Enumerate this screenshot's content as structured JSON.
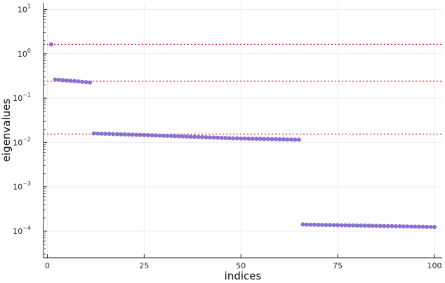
{
  "chart_data": {
    "type": "scatter",
    "xlabel": "indices",
    "ylabel": "eigenvalues",
    "y_scale": "log10",
    "xlim": [
      -1,
      102
    ],
    "ylim_log10": [
      -4.6,
      1.15
    ],
    "x_ticks": [
      {
        "value": 0,
        "label": "0"
      },
      {
        "value": 25,
        "label": "25"
      },
      {
        "value": 50,
        "label": "50"
      },
      {
        "value": 75,
        "label": "75"
      },
      {
        "value": 100,
        "label": "100"
      }
    ],
    "y_ticks": [
      {
        "exponent": 1,
        "base": "10",
        "exp": "1"
      },
      {
        "exponent": 0,
        "base": "10",
        "exp": "0"
      },
      {
        "exponent": -1,
        "base": "10",
        "exp": "−1"
      },
      {
        "exponent": -2,
        "base": "10",
        "exp": "−2"
      },
      {
        "exponent": -3,
        "base": "10",
        "exp": "−3"
      },
      {
        "exponent": -4,
        "base": "10",
        "exp": "−4"
      }
    ],
    "grid": true,
    "legend": "none",
    "marker_color": "#6b7fd7",
    "marker_edge_color": "#b45ac0",
    "reference_line_color": "#e0282e",
    "reference_lines": [
      1.63,
      0.24,
      0.0155
    ],
    "series": [
      {
        "x": [
          1
        ],
        "y": [
          1.63
        ]
      },
      {
        "x": [
          2,
          3,
          4,
          5,
          6,
          7,
          8,
          9,
          10,
          11
        ],
        "y": [
          0.262,
          0.258,
          0.254,
          0.25,
          0.246,
          0.242,
          0.238,
          0.234,
          0.23,
          0.226
        ]
      },
      {
        "x": [
          12,
          13,
          14,
          15,
          16,
          17,
          18,
          19,
          20,
          21,
          22,
          23,
          24,
          25,
          26,
          27,
          28,
          29,
          30,
          31,
          32,
          33,
          34,
          35,
          36,
          37,
          38,
          39,
          40,
          41,
          42,
          43,
          44,
          45,
          46,
          47,
          48,
          49,
          50,
          51,
          52,
          53,
          54,
          55,
          56,
          57,
          58,
          59,
          60,
          61,
          62,
          63,
          64,
          65
        ],
        "y": [
          0.016,
          0.0159,
          0.0158,
          0.0157,
          0.0156,
          0.0155,
          0.0154,
          0.0153,
          0.0152,
          0.0151,
          0.015,
          0.0149,
          0.0148,
          0.0147,
          0.0146,
          0.0145,
          0.0144,
          0.0143,
          0.0142,
          0.0141,
          0.014,
          0.0139,
          0.0138,
          0.0137,
          0.0136,
          0.0135,
          0.0134,
          0.0133,
          0.0132,
          0.0131,
          0.013,
          0.0129,
          0.0128,
          0.0127,
          0.0126,
          0.0125,
          0.0124,
          0.0124,
          0.0123,
          0.0123,
          0.0122,
          0.0122,
          0.0121,
          0.0121,
          0.012,
          0.012,
          0.0119,
          0.0119,
          0.0118,
          0.0118,
          0.0117,
          0.0117,
          0.0116,
          0.0116
        ]
      },
      {
        "x": [
          66,
          67,
          68,
          69,
          70,
          71,
          72,
          73,
          74,
          75,
          76,
          77,
          78,
          79,
          80,
          81,
          82,
          83,
          84,
          85,
          86,
          87,
          88,
          89,
          90,
          91,
          92,
          93,
          94,
          95,
          96,
          97,
          98,
          99,
          100
        ],
        "y": [
          0.000142,
          0.000141,
          0.00014,
          0.00014,
          0.000139,
          0.000139,
          0.000138,
          0.000138,
          0.000137,
          0.000137,
          0.000136,
          0.000136,
          0.000135,
          0.000135,
          0.000134,
          0.000134,
          0.000133,
          0.000133,
          0.000132,
          0.000132,
          0.000131,
          0.000131,
          0.00013,
          0.00013,
          0.000129,
          0.000129,
          0.000128,
          0.000128,
          0.000127,
          0.000127,
          0.000126,
          0.000126,
          0.000125,
          0.000125,
          0.000124
        ]
      }
    ]
  }
}
